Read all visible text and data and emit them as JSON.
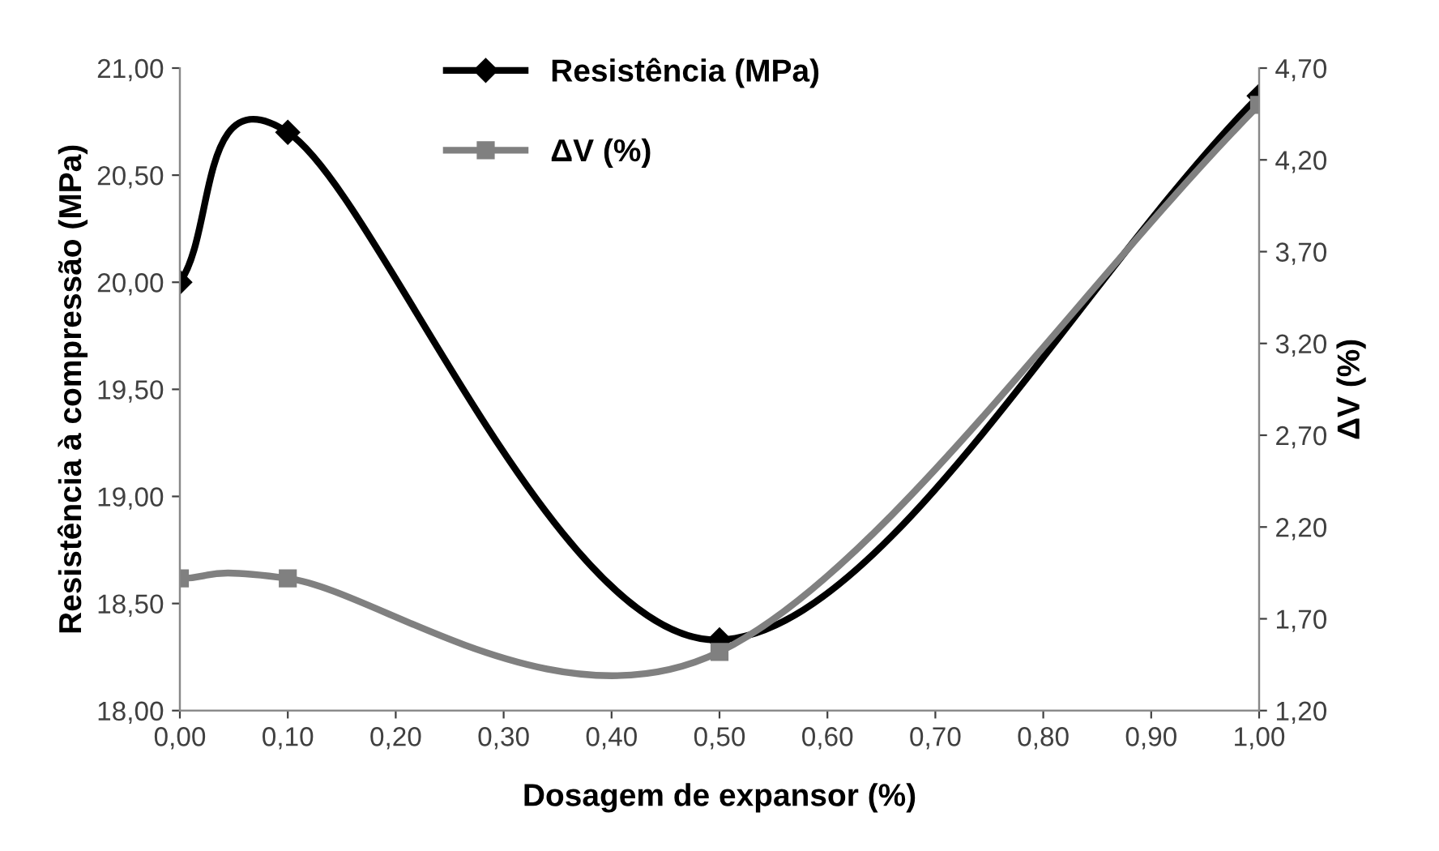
{
  "chart_data": {
    "type": "line",
    "xlabel": "Dosagem de expansor (%)",
    "ylabel": "Resistência à compressão (MPa)",
    "y2label": "ΔV (%)",
    "x": [
      0,
      0.1,
      0.5,
      1.0
    ],
    "series": [
      {
        "name": "Resistência (MPa)",
        "color": "#000000",
        "marker": "diamond",
        "values": [
          20.0,
          20.7,
          18.33,
          20.87
        ]
      },
      {
        "name": "ΔV (%)",
        "color": "#808080",
        "marker": "square",
        "axis": "y2",
        "values": [
          1.92,
          1.92,
          1.52,
          4.5
        ]
      }
    ],
    "xlim": [
      0,
      1
    ],
    "xticks": [
      {
        "value": 0,
        "label": "0,00"
      },
      {
        "value": 0.1,
        "label": "0,10"
      },
      {
        "value": 0.2,
        "label": "0,20"
      },
      {
        "value": 0.3,
        "label": "0,30"
      },
      {
        "value": 0.4,
        "label": "0,40"
      },
      {
        "value": 0.5,
        "label": "0,50"
      },
      {
        "value": 0.6,
        "label": "0,60"
      },
      {
        "value": 0.7,
        "label": "0,70"
      },
      {
        "value": 0.8,
        "label": "0,80"
      },
      {
        "value": 0.9,
        "label": "0,90"
      },
      {
        "value": 1.0,
        "label": "1,00"
      }
    ],
    "ylim": [
      18,
      21
    ],
    "yticks": [
      {
        "value": 18,
        "label": "18,00"
      },
      {
        "value": 18.5,
        "label": "18,50"
      },
      {
        "value": 19,
        "label": "19,00"
      },
      {
        "value": 19.5,
        "label": "19,50"
      },
      {
        "value": 20,
        "label": "20,00"
      },
      {
        "value": 20.5,
        "label": "20,50"
      },
      {
        "value": 21,
        "label": "21,00"
      }
    ],
    "y2lim": [
      1.2,
      4.7
    ],
    "y2ticks": [
      {
        "value": 1.2,
        "label": "1,20"
      },
      {
        "value": 1.7,
        "label": "1,70"
      },
      {
        "value": 2.2,
        "label": "2,20"
      },
      {
        "value": 2.7,
        "label": "2,70"
      },
      {
        "value": 3.2,
        "label": "3,20"
      },
      {
        "value": 3.7,
        "label": "3,70"
      },
      {
        "value": 4.2,
        "label": "4,20"
      },
      {
        "value": 4.7,
        "label": "4,70"
      }
    ],
    "grid": false,
    "legend": "top",
    "line_style": "solid"
  }
}
